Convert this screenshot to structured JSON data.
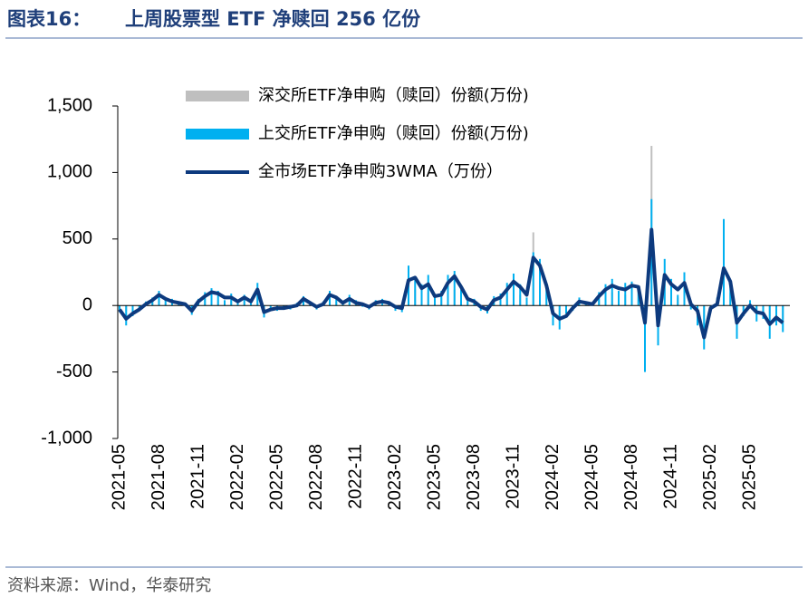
{
  "figure_label": "图表16：",
  "source": "资料来源：Wind，华泰研究",
  "chart_data": {
    "type": "combo",
    "title": "上周股票型 ETF 净赎回 256 亿份",
    "legend": "top-left",
    "categories": [
      "2021-05",
      null,
      null,
      null,
      null,
      null,
      "2021-08",
      null,
      null,
      null,
      null,
      null,
      "2021-11",
      null,
      null,
      null,
      null,
      null,
      "2022-02",
      null,
      null,
      null,
      null,
      null,
      "2022-05",
      null,
      null,
      null,
      null,
      null,
      "2022-08",
      null,
      null,
      null,
      null,
      null,
      "2022-11",
      null,
      null,
      null,
      null,
      null,
      "2023-02",
      null,
      null,
      null,
      null,
      null,
      "2023-05",
      null,
      null,
      null,
      null,
      null,
      "2023-08",
      null,
      null,
      null,
      null,
      null,
      "2023-11",
      null,
      null,
      null,
      null,
      null,
      "2024-02",
      null,
      null,
      null,
      null,
      null,
      "2024-05",
      null,
      null,
      null,
      null,
      null,
      "2024-08",
      null,
      null,
      null,
      null,
      null,
      "2024-11",
      null,
      null,
      null,
      null,
      null,
      "2025-02",
      null,
      null,
      null,
      null,
      null,
      "2025-05",
      null,
      null,
      null,
      null,
      null
    ],
    "ylim": [
      -1000,
      1500
    ],
    "yticks": [
      {
        "value": -1000,
        "label": "-1,000"
      },
      -500,
      0,
      500,
      {
        "value": 1000,
        "label": "1,000"
      },
      {
        "value": 1500,
        "label": "1,500"
      }
    ],
    "series": [
      {
        "name": "深交所ETF净申购（赎回）份额(万份)",
        "type": "bar",
        "color": "#bfbfbf",
        "values": [
          -20,
          -40,
          -20,
          -10,
          10,
          30,
          50,
          20,
          20,
          10,
          10,
          -20,
          20,
          50,
          60,
          40,
          30,
          40,
          10,
          30,
          20,
          60,
          -30,
          -10,
          -10,
          -10,
          -10,
          10,
          30,
          10,
          -10,
          10,
          50,
          30,
          10,
          30,
          20,
          10,
          -10,
          20,
          20,
          10,
          -10,
          -20,
          150,
          120,
          80,
          100,
          40,
          60,
          100,
          120,
          70,
          30,
          20,
          -10,
          -20,
          30,
          40,
          70,
          100,
          80,
          40,
          550,
          200,
          80,
          -80,
          -120,
          -40,
          -10,
          20,
          10,
          10,
          40,
          70,
          100,
          60,
          80,
          90,
          60,
          -200,
          1200,
          -250,
          200,
          100,
          60,
          120,
          10,
          -60,
          -150,
          -20,
          10,
          300,
          100,
          -80,
          -40,
          10,
          -30,
          -40,
          -80,
          -60,
          -100
        ]
      },
      {
        "name": "上交所ETF净申购（赎回）份额(万份)",
        "type": "bar",
        "color": "#00b0f0",
        "values": [
          -50,
          -150,
          -80,
          -20,
          30,
          60,
          110,
          40,
          50,
          10,
          20,
          -70,
          50,
          100,
          130,
          110,
          40,
          90,
          20,
          80,
          50,
          170,
          -90,
          -20,
          -40,
          -10,
          -30,
          20,
          70,
          10,
          -30,
          30,
          110,
          50,
          10,
          80,
          40,
          -10,
          -30,
          40,
          50,
          10,
          -40,
          -50,
          300,
          200,
          160,
          230,
          60,
          110,
          230,
          260,
          120,
          40,
          50,
          -40,
          -60,
          70,
          90,
          170,
          240,
          160,
          60,
          400,
          350,
          120,
          -150,
          -180,
          -60,
          -40,
          60,
          10,
          20,
          100,
          160,
          200,
          110,
          170,
          180,
          120,
          -500,
          800,
          -300,
          350,
          200,
          80,
          250,
          -30,
          -150,
          -330,
          -50,
          60,
          650,
          150,
          -250,
          -80,
          40,
          -120,
          -100,
          -250,
          -150,
          -200
        ]
      },
      {
        "name": "全市场ETF净申购3WMA（万份）",
        "type": "line",
        "color": "#0d3a7e",
        "values": [
          -30,
          -100,
          -60,
          -30,
          10,
          40,
          80,
          50,
          30,
          20,
          10,
          -40,
          30,
          70,
          100,
          90,
          60,
          60,
          30,
          60,
          30,
          120,
          -50,
          -30,
          -20,
          -20,
          -10,
          0,
          50,
          20,
          -10,
          10,
          80,
          60,
          20,
          50,
          20,
          10,
          -10,
          20,
          30,
          20,
          -10,
          -20,
          190,
          210,
          130,
          160,
          70,
          80,
          170,
          220,
          140,
          50,
          30,
          -10,
          -30,
          40,
          60,
          120,
          180,
          140,
          80,
          360,
          300,
          150,
          -60,
          -100,
          -80,
          -20,
          30,
          20,
          10,
          70,
          120,
          150,
          130,
          120,
          150,
          140,
          -130,
          570,
          -150,
          230,
          160,
          120,
          170,
          10,
          -40,
          -240,
          -20,
          10,
          280,
          180,
          -130,
          -60,
          0,
          -50,
          -60,
          -140,
          -90,
          -130
        ]
      }
    ]
  }
}
